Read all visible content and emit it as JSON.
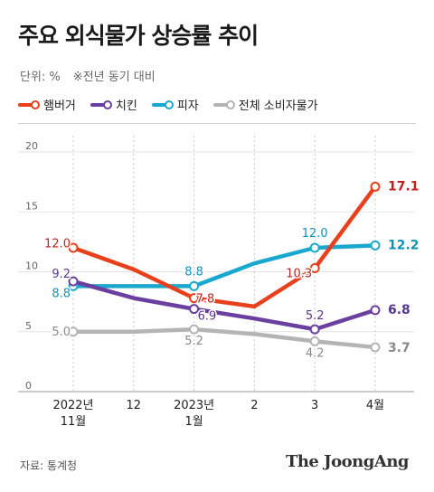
{
  "title": "주요 외식물가 상승률 추이",
  "unit": "단위: %",
  "note": "※전년 동기 대비",
  "source": "자료: 통계청",
  "brand": "The JoongAng",
  "chart_data": {
    "type": "line",
    "categories": [
      "2022년\n11월",
      "12",
      "2023년\n1월",
      "2",
      "3",
      "4월"
    ],
    "ylim": [
      0,
      20
    ],
    "yticks": [
      0,
      5,
      10,
      15,
      20
    ],
    "grid": "horizontal",
    "legend": "top",
    "series": [
      {
        "name": "햄버거",
        "color": "#e8401c",
        "values": [
          12.0,
          10.2,
          7.8,
          7.1,
          10.3,
          17.1
        ],
        "labels": {
          "0": "12.0",
          "2": "7.8",
          "4": "10.3",
          "5": "17.1"
        }
      },
      {
        "name": "치킨",
        "color": "#6a3fa0",
        "values": [
          9.2,
          7.8,
          6.9,
          6.1,
          5.2,
          6.8
        ],
        "labels": {
          "0": "9.2",
          "2": "6.9",
          "4": "5.2",
          "5": "6.8"
        }
      },
      {
        "name": "피자",
        "color": "#1ba8cf",
        "values": [
          8.8,
          8.8,
          8.8,
          10.7,
          12.0,
          12.2
        ],
        "labels": {
          "0": "8.8",
          "2": "8.8",
          "4": "12.0",
          "5": "12.2"
        }
      },
      {
        "name": "전체 소비자물가",
        "color": "#b4b4b4",
        "values": [
          5.0,
          5.0,
          5.2,
          4.8,
          4.2,
          3.7
        ],
        "labels": {
          "0": "5.0",
          "2": "5.2",
          "4": "4.2",
          "5": "3.7"
        }
      }
    ]
  }
}
